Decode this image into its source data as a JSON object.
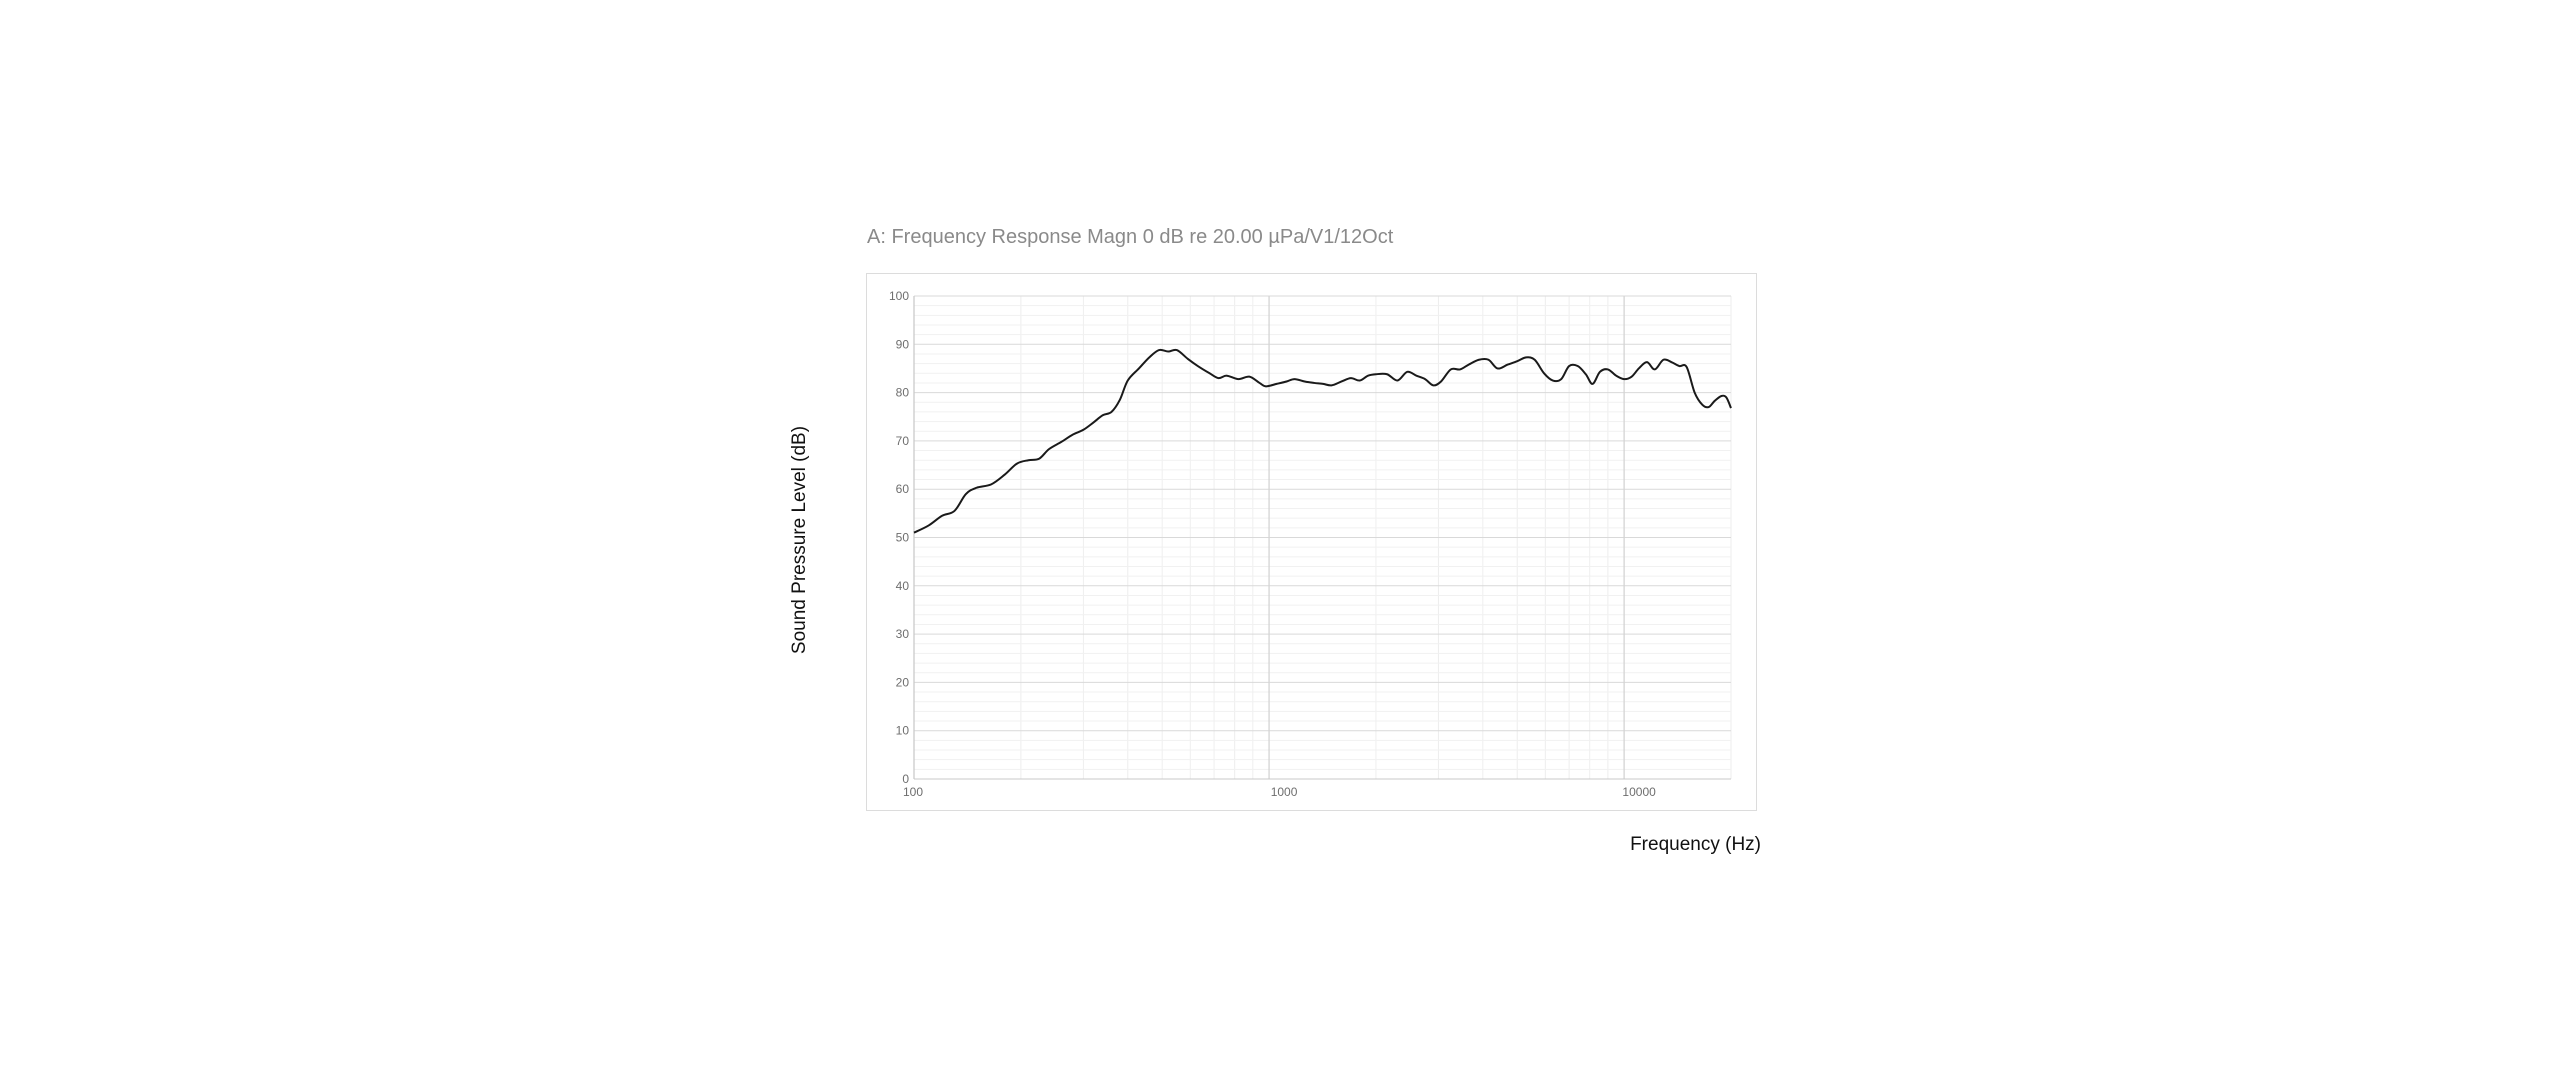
{
  "chart_data": {
    "type": "line",
    "title": "A: Frequency Response Magn 0 dB re 20.00 µPa/V1/12Oct",
    "xlabel": "Frequency (Hz)",
    "ylabel": "Sound Pressure Level (dB)",
    "xscale": "log",
    "xlim": [
      100,
      20000
    ],
    "ylim": [
      0,
      100
    ],
    "x_ticks": [
      "100",
      "1000",
      "10000"
    ],
    "y_ticks": [
      "0",
      "10",
      "20",
      "30",
      "40",
      "50",
      "60",
      "70",
      "80",
      "90",
      "100"
    ],
    "grid": true,
    "series": [
      {
        "color": "#1a1a1a",
        "points": [
          [
            100,
            51
          ],
          [
            110,
            52.5
          ],
          [
            120,
            54.5
          ],
          [
            130,
            55.5
          ],
          [
            140,
            59
          ],
          [
            150,
            60.3
          ],
          [
            165,
            61
          ],
          [
            180,
            63
          ],
          [
            195,
            65.3
          ],
          [
            210,
            66
          ],
          [
            225,
            66.3
          ],
          [
            240,
            68.3
          ],
          [
            260,
            69.8
          ],
          [
            280,
            71.3
          ],
          [
            300,
            72.3
          ],
          [
            320,
            73.8
          ],
          [
            340,
            75.3
          ],
          [
            360,
            76
          ],
          [
            380,
            78.5
          ],
          [
            400,
            82.5
          ],
          [
            430,
            85
          ],
          [
            460,
            87.3
          ],
          [
            490,
            88.8
          ],
          [
            520,
            88.5
          ],
          [
            550,
            88.8
          ],
          [
            590,
            87
          ],
          [
            630,
            85.5
          ],
          [
            680,
            84
          ],
          [
            720,
            83
          ],
          [
            760,
            83.5
          ],
          [
            820,
            82.8
          ],
          [
            880,
            83.3
          ],
          [
            940,
            82
          ],
          [
            980,
            81.3
          ],
          [
            1050,
            81.8
          ],
          [
            1120,
            82.3
          ],
          [
            1180,
            82.8
          ],
          [
            1260,
            82.3
          ],
          [
            1340,
            82
          ],
          [
            1420,
            81.8
          ],
          [
            1500,
            81.5
          ],
          [
            1600,
            82.3
          ],
          [
            1700,
            83
          ],
          [
            1800,
            82.5
          ],
          [
            1900,
            83.5
          ],
          [
            2000,
            83.8
          ],
          [
            2150,
            83.8
          ],
          [
            2300,
            82.5
          ],
          [
            2450,
            84.3
          ],
          [
            2600,
            83.5
          ],
          [
            2750,
            82.8
          ],
          [
            2900,
            81.5
          ],
          [
            3050,
            82.3
          ],
          [
            3250,
            84.8
          ],
          [
            3450,
            84.8
          ],
          [
            3650,
            85.8
          ],
          [
            3900,
            86.8
          ],
          [
            4150,
            86.8
          ],
          [
            4400,
            85
          ],
          [
            4700,
            85.8
          ],
          [
            5000,
            86.5
          ],
          [
            5300,
            87.3
          ],
          [
            5600,
            86.8
          ],
          [
            5950,
            84
          ],
          [
            6300,
            82.5
          ],
          [
            6650,
            82.8
          ],
          [
            7000,
            85.5
          ],
          [
            7400,
            85.5
          ],
          [
            7800,
            83.8
          ],
          [
            8150,
            81.8
          ],
          [
            8550,
            84.3
          ],
          [
            9000,
            84.8
          ],
          [
            9500,
            83.5
          ],
          [
            10000,
            82.8
          ],
          [
            10500,
            83.3
          ],
          [
            11000,
            85
          ],
          [
            11600,
            86.3
          ],
          [
            12200,
            84.8
          ],
          [
            12900,
            86.8
          ],
          [
            13600,
            86.3
          ],
          [
            14300,
            85.5
          ],
          [
            15000,
            85.3
          ],
          [
            15800,
            80
          ],
          [
            16600,
            77.5
          ],
          [
            17300,
            77
          ],
          [
            18000,
            78.3
          ],
          [
            18800,
            79.3
          ],
          [
            19400,
            79
          ],
          [
            20000,
            76.8
          ]
        ]
      }
    ]
  }
}
